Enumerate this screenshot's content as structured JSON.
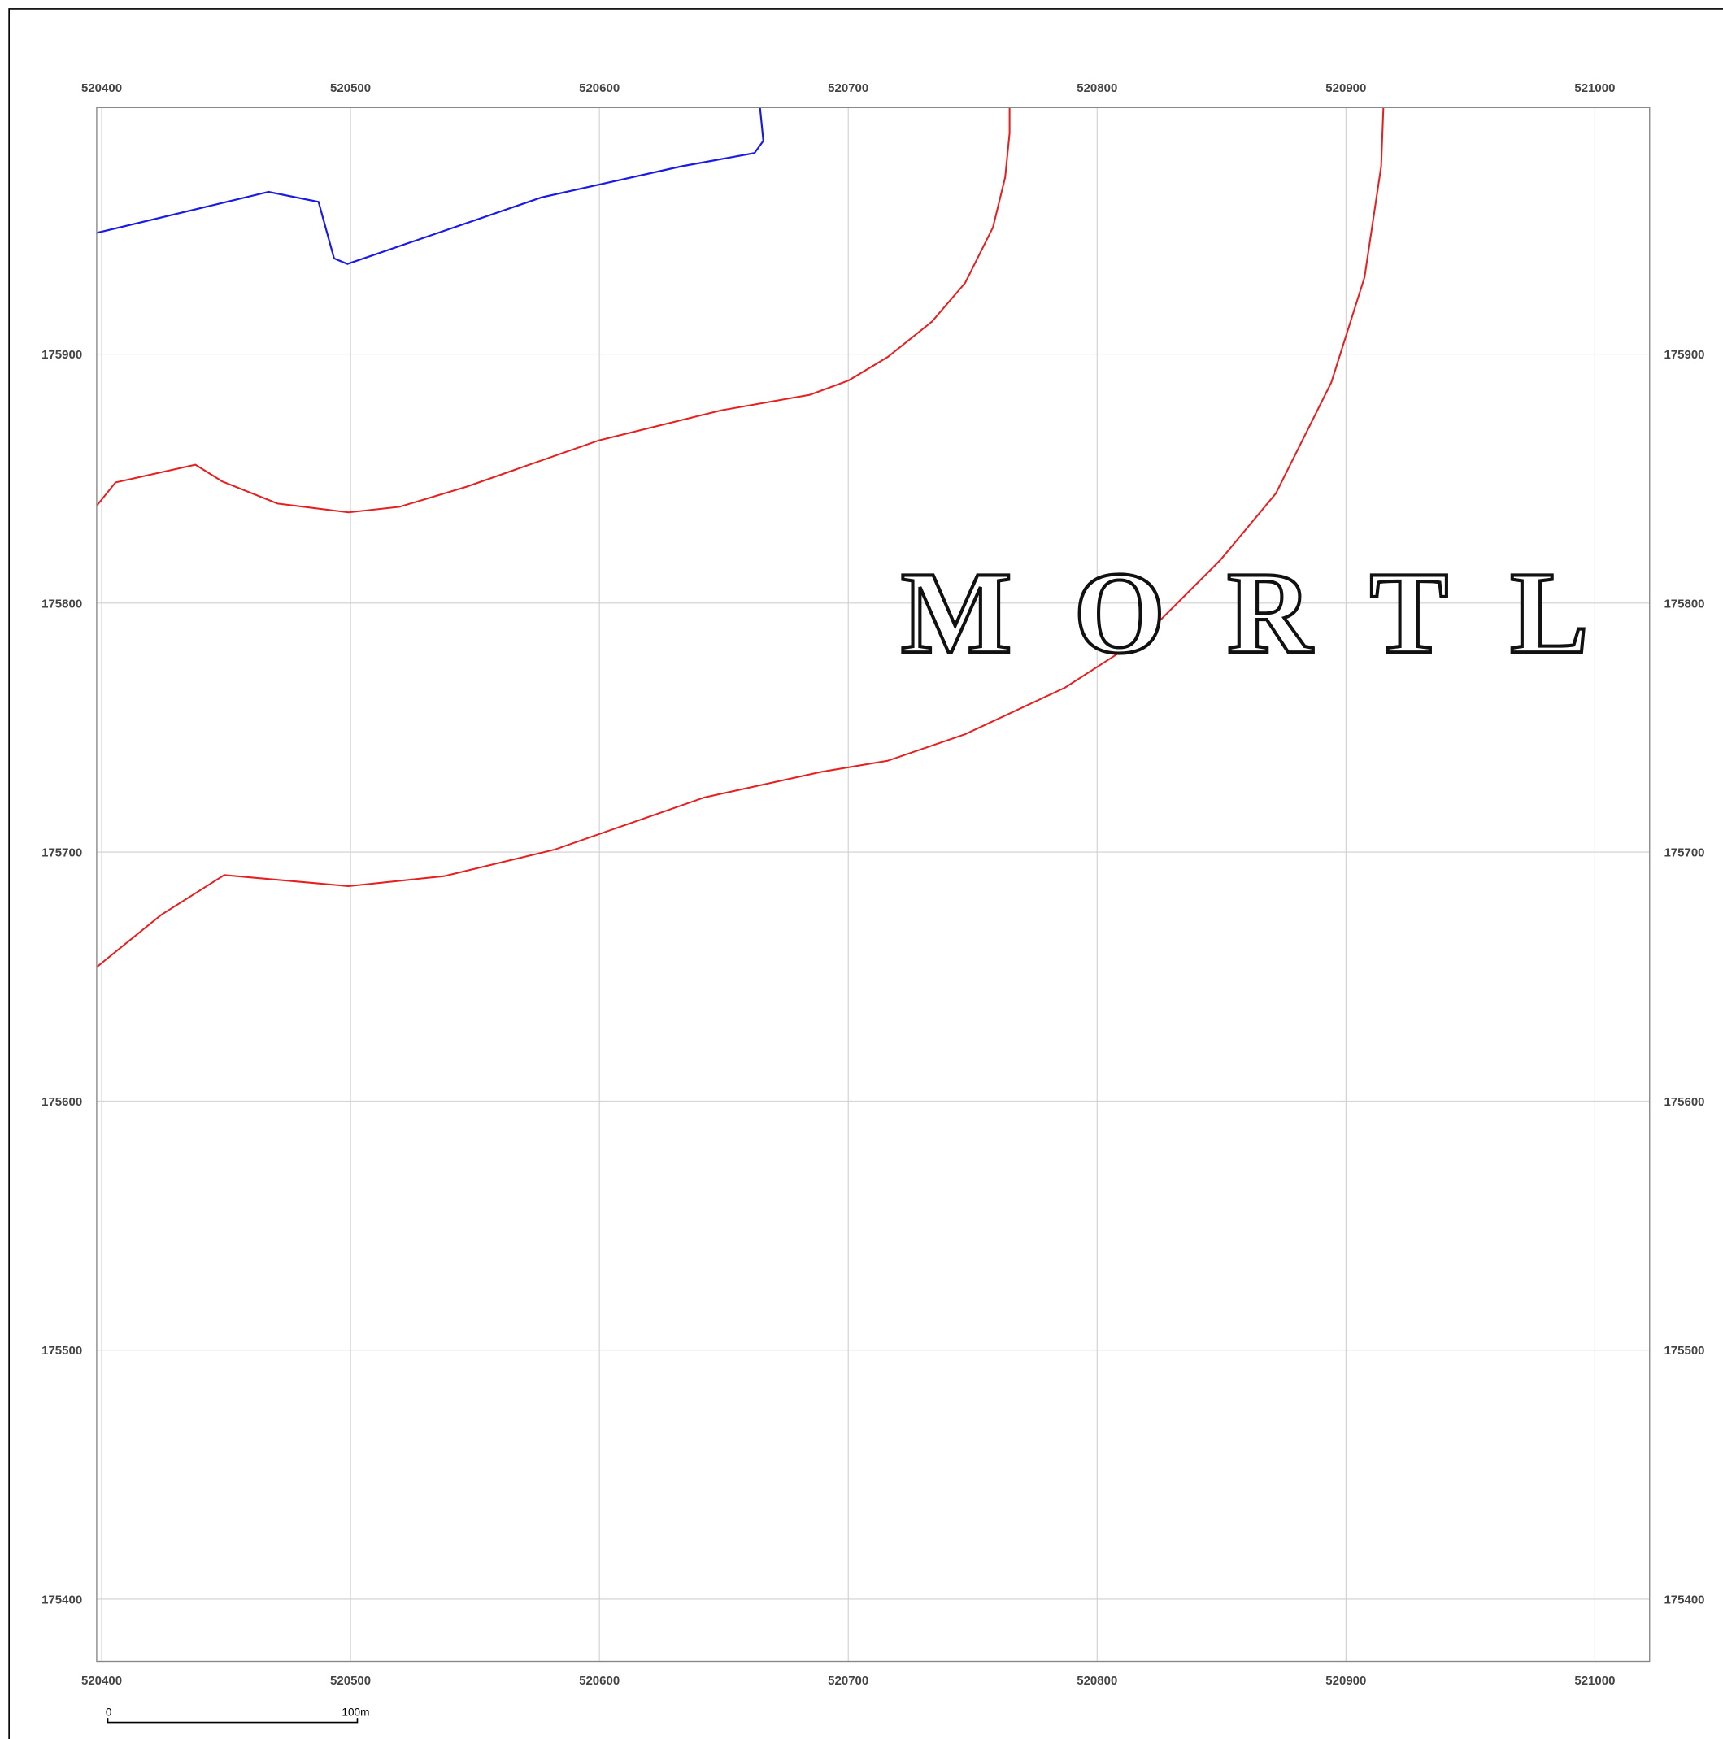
{
  "map": {
    "xlim": [
      520398,
      521022
    ],
    "ylim": [
      175375,
      175999
    ],
    "xticks": [
      520400,
      520500,
      520600,
      520700,
      520800,
      520900,
      521000
    ],
    "yticks": [
      175400,
      175500,
      175600,
      175700,
      175800,
      175900
    ],
    "label": "MORTL",
    "scale_bar": {
      "start": "0",
      "end": "100m"
    }
  }
}
